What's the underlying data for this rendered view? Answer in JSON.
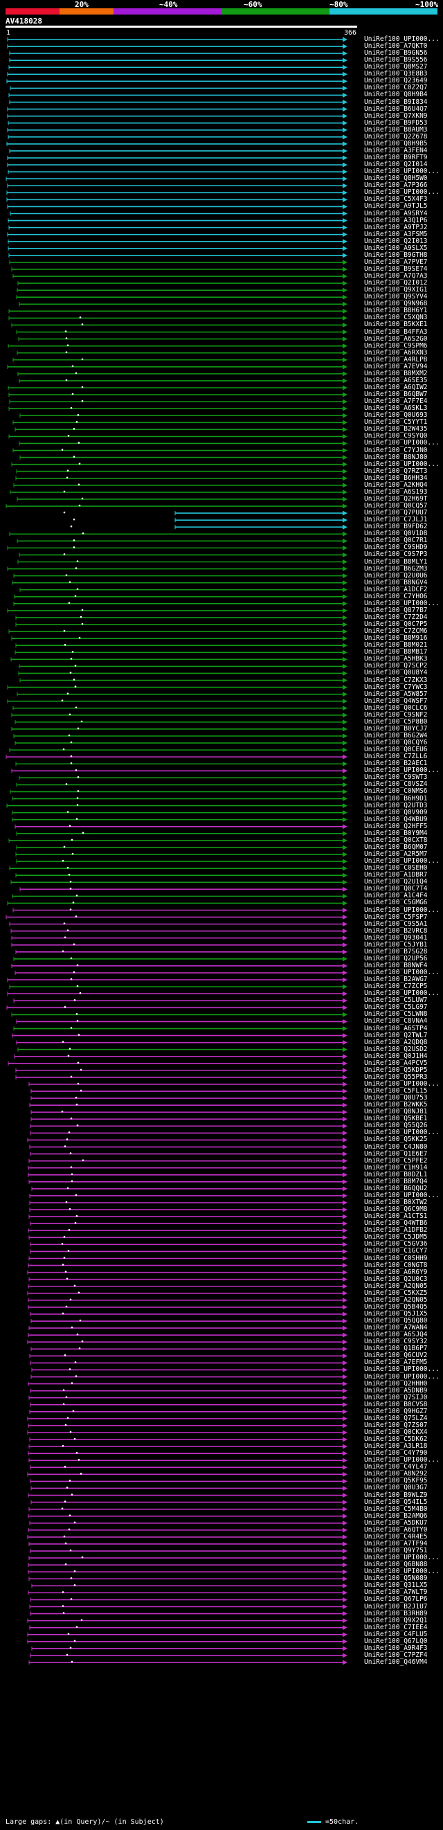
{
  "legend": {
    "colors": [
      "#e8112d",
      "#f06a0a",
      "#a21ad6",
      "#a21ad6",
      "#119b15",
      "#119b15",
      "#22c5d8",
      "#22c5d8"
    ],
    "labels": [
      "20%",
      "~40%",
      "~60%",
      "~80%",
      "~100%"
    ]
  },
  "query": {
    "title": "AV418028",
    "start": "1",
    "end": "366"
  },
  "footer": {
    "large_gaps": "Large gaps: ▲(in Query)/~ (in Subject)",
    "scale": "=50char."
  },
  "hit_colors": {
    "cyan": "#22c5d8",
    "green": "#119b15",
    "magenta": "#c330c8"
  },
  "hits": [
    {
      "label": "UniRef100_UPI000...",
      "color": "cyan"
    },
    {
      "label": "UniRef100_A7QKT0",
      "color": "cyan"
    },
    {
      "label": "UniRef100_B9GN56",
      "color": "cyan"
    },
    {
      "label": "UniRef100_B9S556",
      "color": "cyan"
    },
    {
      "label": "UniRef100_Q8MS27",
      "color": "cyan"
    },
    {
      "label": "UniRef100_Q3E8B3",
      "color": "cyan"
    },
    {
      "label": "UniRef100_Q23649",
      "color": "cyan"
    },
    {
      "label": "UniRef100_C0Z2Q7",
      "color": "cyan"
    },
    {
      "label": "UniRef100_Q8H9B4",
      "color": "cyan"
    },
    {
      "label": "UniRef100_B9I834",
      "color": "cyan"
    },
    {
      "label": "UniRef100_B6U4Q7",
      "color": "cyan"
    },
    {
      "label": "UniRef100_Q7XKN9",
      "color": "cyan"
    },
    {
      "label": "UniRef100_B9FD53",
      "color": "cyan"
    },
    {
      "label": "UniRef100_B8AUM3",
      "color": "cyan"
    },
    {
      "label": "UniRef100_Q2Z678",
      "color": "cyan"
    },
    {
      "label": "UniRef100_Q8H9B5",
      "color": "cyan"
    },
    {
      "label": "UniRef100_A3FEN4",
      "color": "cyan"
    },
    {
      "label": "UniRef100_B9RFT9",
      "color": "cyan"
    },
    {
      "label": "UniRef100_Q2I014",
      "color": "cyan"
    },
    {
      "label": "UniRef100_UPI000...",
      "color": "cyan"
    },
    {
      "label": "UniRef100_Q8H5W0",
      "color": "cyan"
    },
    {
      "label": "UniRef100_A7P366",
      "color": "cyan"
    },
    {
      "label": "UniRef100_UPI000...",
      "color": "cyan"
    },
    {
      "label": "UniRef100_C5X4F3",
      "color": "cyan"
    },
    {
      "label": "UniRef100_A9TJL5",
      "color": "cyan"
    },
    {
      "label": "UniRef100_A9SRY4",
      "color": "cyan"
    },
    {
      "label": "UniRef100_A3Q1P6",
      "color": "cyan"
    },
    {
      "label": "UniRef100_A9TPJ2",
      "color": "cyan"
    },
    {
      "label": "UniRef100_A3FSM5",
      "color": "cyan"
    },
    {
      "label": "UniRef100_Q2I013",
      "color": "cyan"
    },
    {
      "label": "UniRef100_A9SLX5",
      "color": "cyan"
    },
    {
      "label": "UniRef100_B9GTH8",
      "color": "cyan"
    },
    {
      "label": "UniRef100_A7PVE7",
      "color": "green"
    },
    {
      "label": "UniRef100_B9SE74",
      "color": "green"
    },
    {
      "label": "UniRef100_A7Q7A3",
      "color": "green"
    },
    {
      "label": "UniRef100_Q2I012",
      "color": "green"
    },
    {
      "label": "UniRef100_Q9XIG1",
      "color": "green"
    },
    {
      "label": "UniRef100_Q9SYV4",
      "color": "green"
    },
    {
      "label": "UniRef100_Q9N968",
      "color": "green"
    },
    {
      "label": "UniRef100_B8H6Y1",
      "color": "green"
    },
    {
      "label": "UniRef100_C5XQN3",
      "color": "green"
    },
    {
      "label": "UniRef100_B5KXE1",
      "color": "green"
    },
    {
      "label": "UniRef100_B4FFA3",
      "color": "green"
    },
    {
      "label": "UniRef100_A6S2G0",
      "color": "green"
    },
    {
      "label": "UniRef100_C9SPM6",
      "color": "green"
    },
    {
      "label": "UniRef100_A6RXN3",
      "color": "green"
    },
    {
      "label": "UniRef100_A4RLP8",
      "color": "green"
    },
    {
      "label": "UniRef100_A7EV94",
      "color": "green"
    },
    {
      "label": "UniRef100_B8MXM2",
      "color": "green"
    },
    {
      "label": "UniRef100_A6SE35",
      "color": "green"
    },
    {
      "label": "UniRef100_A6QIW2",
      "color": "green"
    },
    {
      "label": "UniRef100_B6QBW7",
      "color": "green"
    },
    {
      "label": "UniRef100_A7F7E4",
      "color": "green"
    },
    {
      "label": "UniRef100_A6SKL3",
      "color": "green"
    },
    {
      "label": "UniRef100_Q0U693",
      "color": "green"
    },
    {
      "label": "UniRef100_C5YYT1",
      "color": "green"
    },
    {
      "label": "UniRef100_B2W435",
      "color": "green"
    },
    {
      "label": "UniRef100_C9SYQ0",
      "color": "green"
    },
    {
      "label": "UniRef100_UPI000...",
      "color": "green"
    },
    {
      "label": "UniRef100_C7YJN0",
      "color": "green"
    },
    {
      "label": "UniRef100_B8NJ80",
      "color": "green"
    },
    {
      "label": "UniRef100_UPI000...",
      "color": "green"
    },
    {
      "label": "UniRef100_Q7RZT3",
      "color": "green"
    },
    {
      "label": "UniRef100_B6HH34",
      "color": "green"
    },
    {
      "label": "UniRef100_A2KHQ4",
      "color": "green"
    },
    {
      "label": "UniRef100_A6S193",
      "color": "green"
    },
    {
      "label": "UniRef100_Q2H69T",
      "color": "green"
    },
    {
      "label": "UniRef100_Q0CQ57",
      "color": "green"
    },
    {
      "label": "UniRef100_Q7PUU7",
      "color": "cyan"
    },
    {
      "label": "UniRef100_C7JLJ1",
      "color": "cyan"
    },
    {
      "label": "UniRef100_B9FD62",
      "color": "cyan"
    },
    {
      "label": "UniRef100_Q0V1D8",
      "color": "green"
    },
    {
      "label": "UniRef100_Q0C7R1",
      "color": "green"
    },
    {
      "label": "UniRef100_C9SHD9",
      "color": "green"
    },
    {
      "label": "UniRef100_C9S7P3",
      "color": "green"
    },
    {
      "label": "UniRef100_B8MLY1",
      "color": "green"
    },
    {
      "label": "UniRef100_B6GZM3",
      "color": "green"
    },
    {
      "label": "UniRef100_Q2U0U6",
      "color": "green"
    },
    {
      "label": "UniRef100_B8NGV4",
      "color": "green"
    },
    {
      "label": "UniRef100_A1DCF2",
      "color": "green"
    },
    {
      "label": "UniRef100_C7YHO6",
      "color": "green"
    },
    {
      "label": "UniRef100_UPI000...",
      "color": "green"
    },
    {
      "label": "UniRef100_Q877B7",
      "color": "green"
    },
    {
      "label": "UniRef100_C7Z2D4",
      "color": "green"
    },
    {
      "label": "UniRef100_Q0C7P5",
      "color": "green"
    },
    {
      "label": "UniRef100_C7ZCM6",
      "color": "green"
    },
    {
      "label": "UniRef100_B8M916",
      "color": "green"
    },
    {
      "label": "UniRef100_B8M021",
      "color": "green"
    },
    {
      "label": "UniRef100_B8MB17",
      "color": "green"
    },
    {
      "label": "UniRef100_A5HBK3",
      "color": "green"
    },
    {
      "label": "UniRef100_Q7SCP2",
      "color": "green"
    },
    {
      "label": "UniRef100_Q0U8Y4",
      "color": "green"
    },
    {
      "label": "UniRef100_C7ZKX3",
      "color": "green"
    },
    {
      "label": "UniRef100_C7YWC3",
      "color": "green"
    },
    {
      "label": "UniRef100_A5W857",
      "color": "green"
    },
    {
      "label": "UniRef100_Q4WSF7",
      "color": "green"
    },
    {
      "label": "UniRef100_Q0CLC6",
      "color": "green"
    },
    {
      "label": "UniRef100_C9SNF2",
      "color": "green"
    },
    {
      "label": "UniRef100_C5P8B0",
      "color": "green"
    },
    {
      "label": "UniRef100_B0YCJ7",
      "color": "green"
    },
    {
      "label": "UniRef100_B6G2W4",
      "color": "green"
    },
    {
      "label": "UniRef100_Q0CQY6",
      "color": "green"
    },
    {
      "label": "UniRef100_Q0CEU6",
      "color": "green"
    },
    {
      "label": "UniRef100_C7ZLL6",
      "color": "magenta"
    },
    {
      "label": "UniRef100_B2AEC1",
      "color": "green"
    },
    {
      "label": "UniRef100_UPI000...",
      "color": "magenta"
    },
    {
      "label": "UniRef100_C9SWT3",
      "color": "green"
    },
    {
      "label": "UniRef100_C8VSZ4",
      "color": "green"
    },
    {
      "label": "UniRef100_C0NMS6",
      "color": "green"
    },
    {
      "label": "UniRef100_B6H9D1",
      "color": "green"
    },
    {
      "label": "UniRef100_Q2UTD3",
      "color": "green"
    },
    {
      "label": "UniRef100_Q0V909",
      "color": "green"
    },
    {
      "label": "UniRef100_Q4WBU9",
      "color": "green"
    },
    {
      "label": "UniRef100_Q2HFF5",
      "color": "magenta"
    },
    {
      "label": "UniRef100_B0Y9M4",
      "color": "green"
    },
    {
      "label": "UniRef100_Q0CXT8",
      "color": "green"
    },
    {
      "label": "UniRef100_B6QM07",
      "color": "green"
    },
    {
      "label": "UniRef100_A2R5M7",
      "color": "green"
    },
    {
      "label": "UniRef100_UPI000...",
      "color": "green"
    },
    {
      "label": "UniRef100_C0SEH0",
      "color": "green"
    },
    {
      "label": "UniRef100_A1DBR7",
      "color": "green"
    },
    {
      "label": "UniRef100_Q2U1Q4",
      "color": "green"
    },
    {
      "label": "UniRef100_Q0C7T4",
      "color": "magenta"
    },
    {
      "label": "UniRef100_A1C4F4",
      "color": "green"
    },
    {
      "label": "UniRef100_C5GMG6",
      "color": "green"
    },
    {
      "label": "UniRef100_UPI000...",
      "color": "magenta"
    },
    {
      "label": "UniRef100_C5FSP7",
      "color": "magenta"
    },
    {
      "label": "UniRef100_C9S5A1",
      "color": "magenta"
    },
    {
      "label": "UniRef100_B2VRC8",
      "color": "magenta"
    },
    {
      "label": "UniRef100_Q93041",
      "color": "magenta"
    },
    {
      "label": "UniRef100_C5JYB1",
      "color": "magenta"
    },
    {
      "label": "UniRef100_B7SG28",
      "color": "magenta"
    },
    {
      "label": "UniRef100_Q2UP56",
      "color": "green"
    },
    {
      "label": "UniRef100_B8NWF4",
      "color": "magenta"
    },
    {
      "label": "UniRef100_UPI000...",
      "color": "magenta"
    },
    {
      "label": "UniRef100_B2AWG7",
      "color": "magenta"
    },
    {
      "label": "UniRef100_C7ZCP5",
      "color": "green"
    },
    {
      "label": "UniRef100_UPI000...",
      "color": "magenta"
    },
    {
      "label": "UniRef100_C5LUW7",
      "color": "magenta"
    },
    {
      "label": "UniRef100_C5LG97",
      "color": "magenta"
    },
    {
      "label": "UniRef100_C5LWN8",
      "color": "green"
    },
    {
      "label": "UniRef100_C8VNA4",
      "color": "magenta"
    },
    {
      "label": "UniRef100_A6STP4",
      "color": "green"
    },
    {
      "label": "UniRef100_Q2TWL7",
      "color": "magenta"
    },
    {
      "label": "UniRef100_A2QDQ8",
      "color": "magenta"
    },
    {
      "label": "UniRef100_Q2USD2",
      "color": "green"
    },
    {
      "label": "UniRef100_Q0J1H4",
      "color": "magenta"
    },
    {
      "label": "UniRef100_A4PCV5",
      "color": "magenta"
    },
    {
      "label": "UniRef100_Q5KDP5",
      "color": "magenta"
    },
    {
      "label": "UniRef100_Q55PR3",
      "color": "magenta"
    },
    {
      "label": "UniRef100_UPI000...",
      "color": "magenta"
    },
    {
      "label": "UniRef100_C5FL15",
      "color": "magenta"
    },
    {
      "label": "UniRef100_Q0U753",
      "color": "magenta"
    },
    {
      "label": "UniRef100_B2WKK5",
      "color": "magenta"
    },
    {
      "label": "UniRef100_Q8NJ81",
      "color": "magenta"
    },
    {
      "label": "UniRef100_Q5KBE1",
      "color": "magenta"
    },
    {
      "label": "UniRef100_Q55Q26",
      "color": "magenta"
    },
    {
      "label": "UniRef100_UPI000...",
      "color": "magenta"
    },
    {
      "label": "UniRef100_Q5KK25",
      "color": "magenta"
    },
    {
      "label": "UniRef100_C4JN80",
      "color": "magenta"
    },
    {
      "label": "UniRef100_Q1E6E7",
      "color": "magenta"
    },
    {
      "label": "UniRef100_C5PFE2",
      "color": "magenta"
    },
    {
      "label": "UniRef100_C1H914",
      "color": "magenta"
    },
    {
      "label": "UniRef100_B0DZL1",
      "color": "magenta"
    },
    {
      "label": "UniRef100_B8M7Q4",
      "color": "magenta"
    },
    {
      "label": "UniRef100_B6QQU2",
      "color": "magenta"
    },
    {
      "label": "UniRef100_UPI000...",
      "color": "magenta"
    },
    {
      "label": "UniRef100_B0XTW2",
      "color": "magenta"
    },
    {
      "label": "UniRef100_Q6C9M8",
      "color": "magenta"
    },
    {
      "label": "UniRef100_A1CTS1",
      "color": "magenta"
    },
    {
      "label": "UniRef100_Q4WTB6",
      "color": "magenta"
    },
    {
      "label": "UniRef100_A1DFB2",
      "color": "magenta"
    },
    {
      "label": "UniRef100_C5JDM5",
      "color": "magenta"
    },
    {
      "label": "UniRef100_C5GV36",
      "color": "magenta"
    },
    {
      "label": "UniRef100_C1GCY7",
      "color": "magenta"
    },
    {
      "label": "UniRef100_C0SHH9",
      "color": "magenta"
    },
    {
      "label": "UniRef100_C0NGT8",
      "color": "magenta"
    },
    {
      "label": "UniRef100_A6R6Y9",
      "color": "magenta"
    },
    {
      "label": "UniRef100_Q2U0C3",
      "color": "magenta"
    },
    {
      "label": "UniRef100_A2QN05",
      "color": "magenta"
    },
    {
      "label": "UniRef100_C5KXZ5",
      "color": "magenta"
    },
    {
      "label": "UniRef100_A2QN05",
      "color": "magenta"
    },
    {
      "label": "UniRef100_Q5B4Q5",
      "color": "magenta"
    },
    {
      "label": "UniRef100_Q5J1X5",
      "color": "magenta"
    },
    {
      "label": "UniRef100_Q5QQ80",
      "color": "magenta"
    },
    {
      "label": "UniRef100_A7WAN4",
      "color": "magenta"
    },
    {
      "label": "UniRef100_A6SJQ4",
      "color": "magenta"
    },
    {
      "label": "UniRef100_C9SY32",
      "color": "magenta"
    },
    {
      "label": "UniRef100_Q1B6P7",
      "color": "magenta"
    },
    {
      "label": "UniRef100_Q6CUV2",
      "color": "magenta"
    },
    {
      "label": "UniRef100_A7EFM5",
      "color": "magenta"
    },
    {
      "label": "UniRef100_UPI000...",
      "color": "magenta"
    },
    {
      "label": "UniRef100_UPI000...",
      "color": "magenta"
    },
    {
      "label": "UniRef100_Q2HHH0",
      "color": "magenta"
    },
    {
      "label": "UniRef100_A5DNB9",
      "color": "magenta"
    },
    {
      "label": "UniRef100_Q7SIJ0",
      "color": "magenta"
    },
    {
      "label": "UniRef100_B0CVS8",
      "color": "magenta"
    },
    {
      "label": "UniRef100_Q9HGZ7",
      "color": "magenta"
    },
    {
      "label": "UniRef100_Q75LZ4",
      "color": "magenta"
    },
    {
      "label": "UniRef100_Q7ZS07",
      "color": "magenta"
    },
    {
      "label": "UniRef100_Q0CKX4",
      "color": "magenta"
    },
    {
      "label": "UniRef100_C5DK62",
      "color": "magenta"
    },
    {
      "label": "UniRef100_A3LR18",
      "color": "magenta"
    },
    {
      "label": "UniRef100_C4Y790",
      "color": "magenta"
    },
    {
      "label": "UniRef100_UPI000...",
      "color": "magenta"
    },
    {
      "label": "UniRef100_C4YL47",
      "color": "magenta"
    },
    {
      "label": "UniRef100_A8N292",
      "color": "magenta"
    },
    {
      "label": "UniRef100_Q5KF95",
      "color": "magenta"
    },
    {
      "label": "UniRef100_Q0U3G7",
      "color": "magenta"
    },
    {
      "label": "UniRef100_B9WLZ9",
      "color": "magenta"
    },
    {
      "label": "UniRef100_Q54IL5",
      "color": "magenta"
    },
    {
      "label": "UniRef100_C5M4B0",
      "color": "magenta"
    },
    {
      "label": "UniRef100_B2AMQ6",
      "color": "magenta"
    },
    {
      "label": "UniRef100_A5DKU7",
      "color": "magenta"
    },
    {
      "label": "UniRef100_A6QTY0",
      "color": "magenta"
    },
    {
      "label": "UniRef100_C4R4E5",
      "color": "magenta"
    },
    {
      "label": "UniRef100_A7TF94",
      "color": "magenta"
    },
    {
      "label": "UniRef100_Q9Y751",
      "color": "magenta"
    },
    {
      "label": "UniRef100_UPI000...",
      "color": "magenta"
    },
    {
      "label": "UniRef100_Q6BN88",
      "color": "magenta"
    },
    {
      "label": "UniRef100_UPI000...",
      "color": "magenta"
    },
    {
      "label": "UniRef100_Q5N089",
      "color": "magenta"
    },
    {
      "label": "UniRef100_Q31LX5",
      "color": "magenta"
    },
    {
      "label": "UniRef100_A7WLT9",
      "color": "magenta"
    },
    {
      "label": "UniRef100_Q67LP6",
      "color": "magenta"
    },
    {
      "label": "UniRef100_B2J1U7",
      "color": "magenta"
    },
    {
      "label": "UniRef100_B3RH89",
      "color": "magenta"
    },
    {
      "label": "UniRef100_Q9X2Q1",
      "color": "magenta"
    },
    {
      "label": "UniRef100_C7IEE4",
      "color": "magenta"
    },
    {
      "label": "UniRef100_C4FLU5",
      "color": "magenta"
    },
    {
      "label": "UniRef100_Q67LQ0",
      "color": "magenta"
    },
    {
      "label": "UniRef100_A9R4F3",
      "color": "magenta"
    },
    {
      "label": "UniRef100_C7PZF4",
      "color": "magenta"
    },
    {
      "label": "UniRef100_Q46VM4",
      "color": "magenta"
    }
  ]
}
